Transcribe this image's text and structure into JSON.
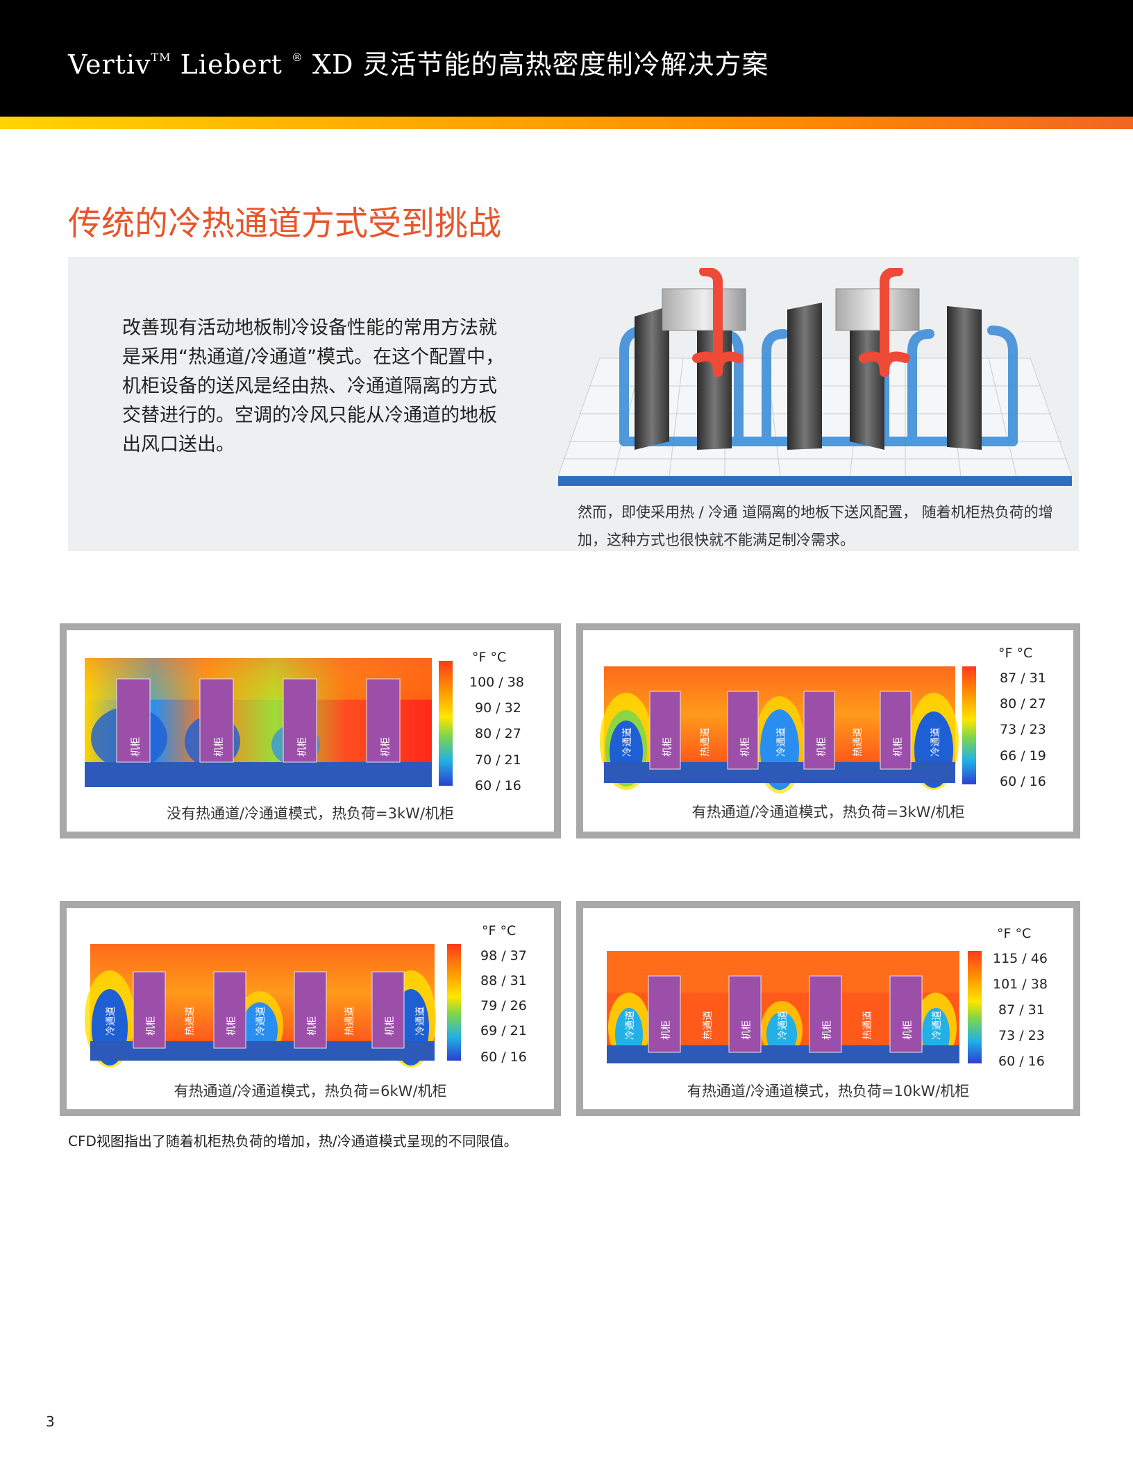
{
  "header": {
    "brand_vertiv": "Vertiv",
    "tm": "TM",
    "brand_liebert": " Liebert",
    "reg": "®",
    "title_rest": " XD 灵活节能的高热密度制冷解决方案"
  },
  "section": {
    "title": "传统的冷热通道方式受到挑战"
  },
  "intro": {
    "text": "改善现有活动地板制冷设备性能的常用方法就是采用“热通道/冷通道”模式。在这个配置中，机柜设备的送风是经由热、冷通道隔离的方式交替进行的。空调的冷风只能从冷通道的地板出风口送出。",
    "caption": "然而，即使采用热 / 冷通 道隔离的地板下送风配置， 随着机柜热负荷的增加，这种方式也很快就不能满足制冷需求。"
  },
  "cfd_panels": [
    {
      "caption": "没有热通道/冷通道模式，热负荷=3kW/机柜",
      "scale_header": "°F   °C",
      "scale": [
        "100 / 38",
        "90 / 32",
        "80 / 27",
        "70 / 21",
        "60 / 16"
      ],
      "labels": [
        "机柜",
        "机柜",
        "机柜",
        "机柜"
      ]
    },
    {
      "caption": "有热通道/冷通道模式，热负荷=3kW/机柜",
      "scale_header": "°F   °C",
      "scale": [
        "87 / 31",
        "80 / 27",
        "73 / 23",
        "66 / 19",
        "60 / 16"
      ],
      "labels": [
        "冷通道",
        "机柜",
        "热通道",
        "机柜",
        "冷通道",
        "机柜",
        "热通道",
        "机柜",
        "冷通道"
      ]
    },
    {
      "caption": "有热通道/冷通道模式，热负荷=6kW/机柜",
      "scale_header": "°F   °C",
      "scale": [
        "98 / 37",
        "88 / 31",
        "79 / 26",
        "69 / 21",
        "60 / 16"
      ],
      "labels": [
        "冷通道",
        "机柜",
        "热通道",
        "机柜",
        "冷通道",
        "机柜",
        "热通道",
        "机柜",
        "冷通道"
      ]
    },
    {
      "caption": "有热通道/冷通道模式，热负荷=10kW/机柜",
      "scale_header": "°F   °C",
      "scale": [
        "115 / 46",
        "101 / 38",
        "87 / 31",
        "73 / 23",
        "60 / 16"
      ],
      "labels": [
        "冷通道",
        "机柜",
        "热通道",
        "机柜",
        "冷通道",
        "机柜",
        "热通道",
        "机柜",
        "冷通道"
      ]
    }
  ],
  "footnote": "CFD视图指出了随着机柜热负荷的增加，热/冷通道模式呈现的不同限值。",
  "page_number": "3"
}
